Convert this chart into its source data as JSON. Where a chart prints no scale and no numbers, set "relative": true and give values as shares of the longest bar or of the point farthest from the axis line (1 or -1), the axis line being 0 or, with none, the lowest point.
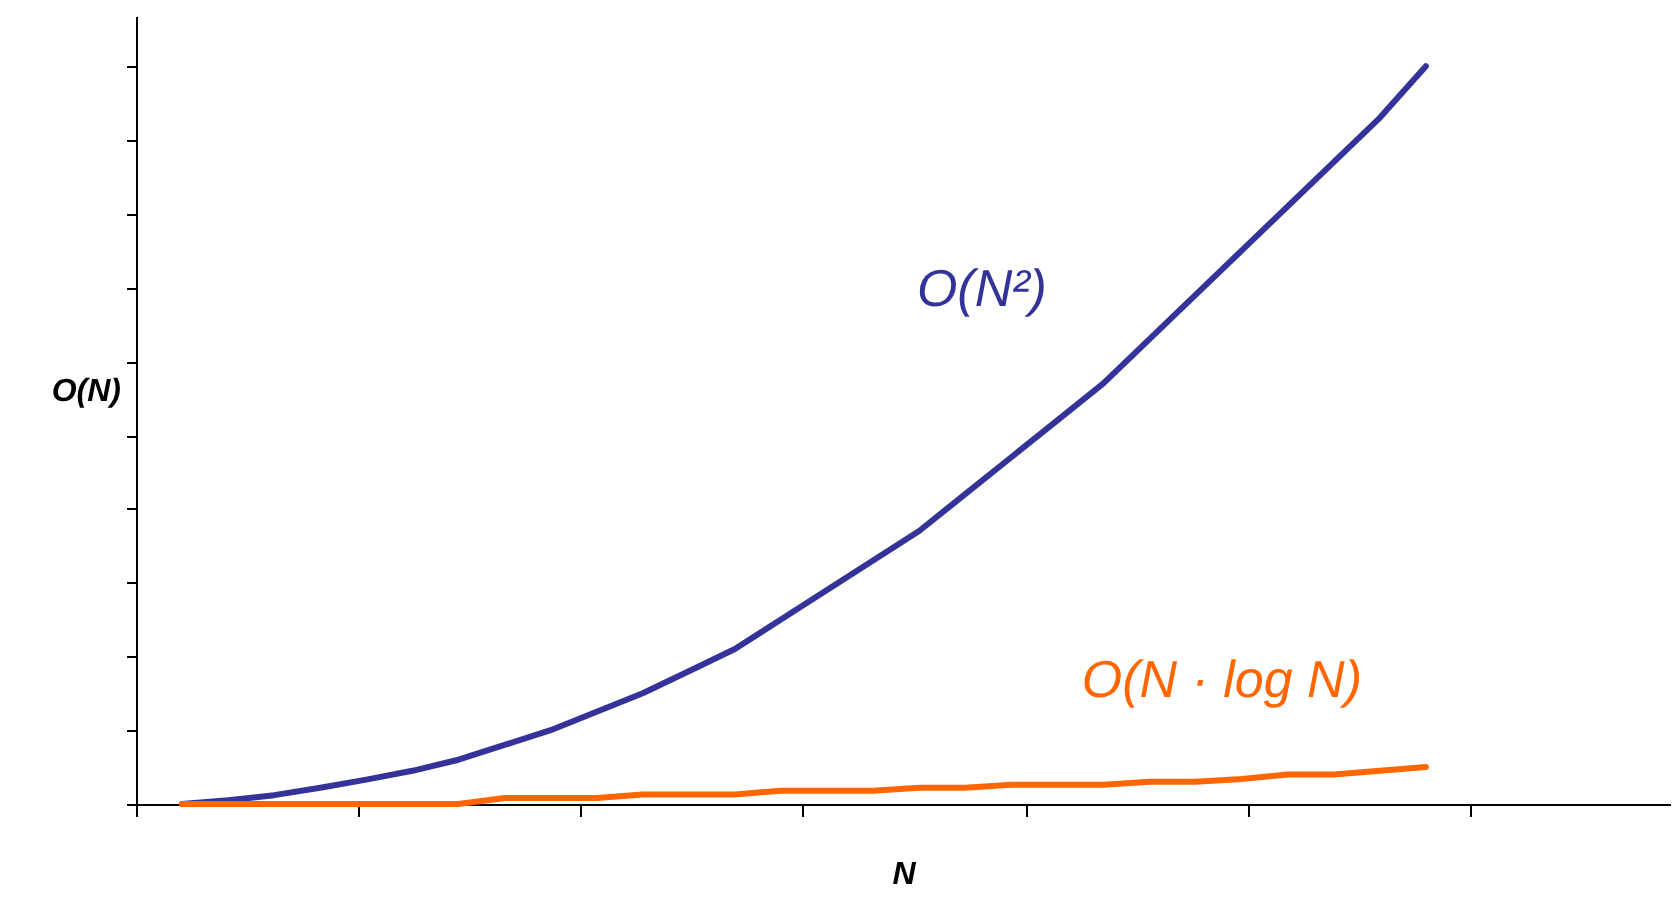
{
  "chart_data": {
    "type": "line",
    "relative": true,
    "xlabel": "N",
    "ylabel": "O(N)",
    "categories": [
      null,
      null,
      null,
      null,
      null,
      null,
      null,
      null,
      null,
      null,
      null,
      null,
      null,
      null,
      null,
      null,
      null,
      null,
      null,
      null,
      null,
      null,
      null,
      null,
      null,
      null,
      null,
      null
    ],
    "series": [
      {
        "name": "O(N²)",
        "color": "#333399",
        "values": [
          0,
          0.005,
          0.012,
          0.022,
          0.033,
          0.045,
          0.06,
          0.08,
          0.1,
          0.125,
          0.15,
          0.18,
          0.21,
          0.25,
          0.29,
          0.33,
          0.37,
          0.42,
          0.47,
          0.52,
          0.57,
          0.63,
          0.69,
          0.75,
          0.81,
          0.87,
          0.93,
          1
        ]
      },
      {
        "name": "O(N · log N)",
        "color": "#ff6600",
        "values": [
          0,
          0,
          0,
          0,
          0,
          0,
          0,
          0.008,
          0.008,
          0.008,
          0.013,
          0.013,
          0.013,
          0.018,
          0.018,
          0.018,
          0.022,
          0.022,
          0.026,
          0.026,
          0.026,
          0.03,
          0.03,
          0.034,
          0.04,
          0.04,
          0.045,
          0.05
        ]
      }
    ],
    "marker": "none",
    "line_style": "solid"
  }
}
